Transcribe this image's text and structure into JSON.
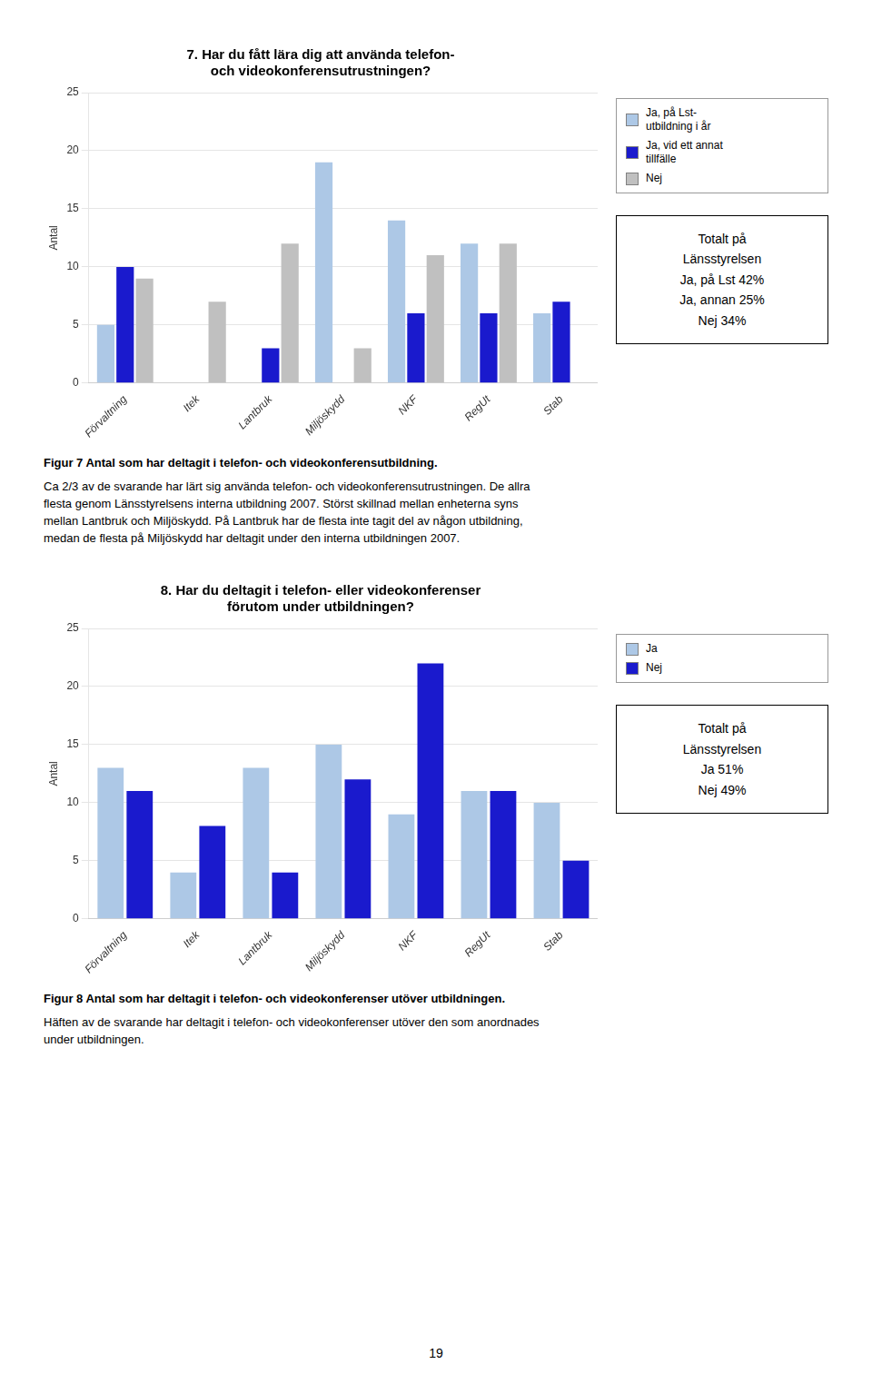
{
  "chart_data": [
    {
      "type": "bar",
      "title": "7. Har du fått lära dig att använda telefon-\noch videokonferensutrustningen?",
      "categories": [
        "Förvaltning",
        "Itek",
        "Lantbruk",
        "Miljöskydd",
        "NKF",
        "RegUt",
        "Stab"
      ],
      "series": [
        {
          "name": "Ja, på Lst-\nutbildning i år",
          "color": "#adc8e6",
          "values": [
            5,
            0,
            0,
            19,
            14,
            12,
            6
          ]
        },
        {
          "name": "Ja, vid ett annat\ntillfälle",
          "color": "#1a1acd",
          "values": [
            10,
            0,
            3,
            0,
            6,
            6,
            7
          ]
        },
        {
          "name": "Nej",
          "color": "#c0c0c0",
          "values": [
            9,
            7,
            12,
            3,
            11,
            12,
            0
          ]
        }
      ],
      "ylabel": "Antal",
      "ylim": [
        0,
        25
      ],
      "yticks": [
        0,
        5,
        10,
        15,
        20,
        25
      ],
      "grid": true,
      "legend": "right",
      "annotations": [
        "Totalt på\nLänsstyrelsen\nJa, på Lst 42%\nJa, annan 25%\nNej 34%",
        "Figur 7 Antal som har deltagit i telefon- och videokonferensutbildning.",
        "Ca 2/3 av de svarande har lärt sig använda telefon- och videokonferensutrustningen. De allra\nflesta genom Länsstyrelsens interna utbildning 2007. Störst skillnad mellan enheterna syns\nmellan Lantbruk och Miljöskydd. På Lantbruk har de flesta inte tagit del av någon utbildning,\nmedan de flesta på Miljöskydd har deltagit under den interna utbildningen 2007."
      ]
    },
    {
      "type": "bar",
      "title": "8. Har du deltagit i telefon- eller videokonferenser\nförutom under utbildningen?",
      "categories": [
        "Förvaltning",
        "Itek",
        "Lantbruk",
        "Miljöskydd",
        "NKF",
        "RegUt",
        "Stab"
      ],
      "series": [
        {
          "name": "Ja",
          "color": "#adc8e6",
          "values": [
            13,
            4,
            13,
            15,
            9,
            11,
            10
          ]
        },
        {
          "name": "Nej",
          "color": "#1a1acd",
          "values": [
            11,
            8,
            4,
            12,
            22,
            11,
            5
          ]
        }
      ],
      "ylabel": "Antal",
      "ylim": [
        0,
        25
      ],
      "yticks": [
        0,
        5,
        10,
        15,
        20,
        25
      ],
      "grid": true,
      "legend": "right",
      "annotations": [
        "Totalt på\nLänsstyrelsen\nJa 51%\nNej 49%",
        "Figur 8 Antal som har deltagit i telefon- och videokonferenser utöver utbildningen.",
        "Häften av de svarande har deltagit i telefon- och videokonferenser utöver den som anordnades\nunder utbildningen.",
        "19"
      ]
    }
  ]
}
